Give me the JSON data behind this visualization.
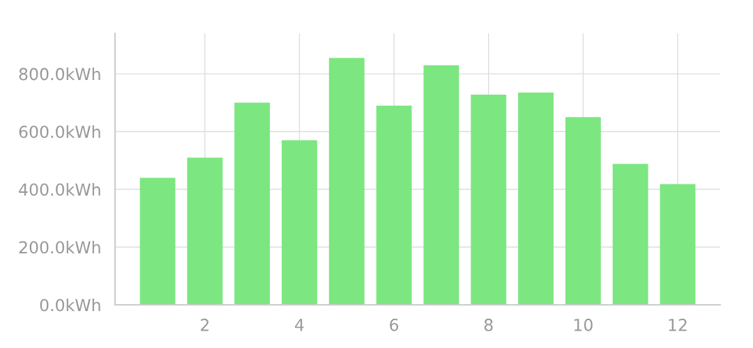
{
  "chart_data": {
    "type": "bar",
    "x": [
      1,
      2,
      3,
      4,
      5,
      6,
      7,
      8,
      9,
      10,
      11,
      12
    ],
    "values": [
      440,
      510,
      700,
      570,
      855,
      690,
      830,
      728,
      735,
      650,
      488,
      418
    ],
    "color": "#7ce681",
    "xlim": [
      0.1,
      12.9
    ],
    "xticks": [
      2,
      4,
      6,
      8,
      10,
      12
    ],
    "ylim": [
      0,
      940
    ],
    "yticks": [
      {
        "value": 0,
        "label": "0.0kWh"
      },
      {
        "value": 200,
        "label": "200.0kWh"
      },
      {
        "value": 400,
        "label": "400.0kWh"
      },
      {
        "value": 600,
        "label": "600.0kWh"
      },
      {
        "value": 800,
        "label": "800.0kWh"
      }
    ],
    "grid": true,
    "legend": false
  }
}
